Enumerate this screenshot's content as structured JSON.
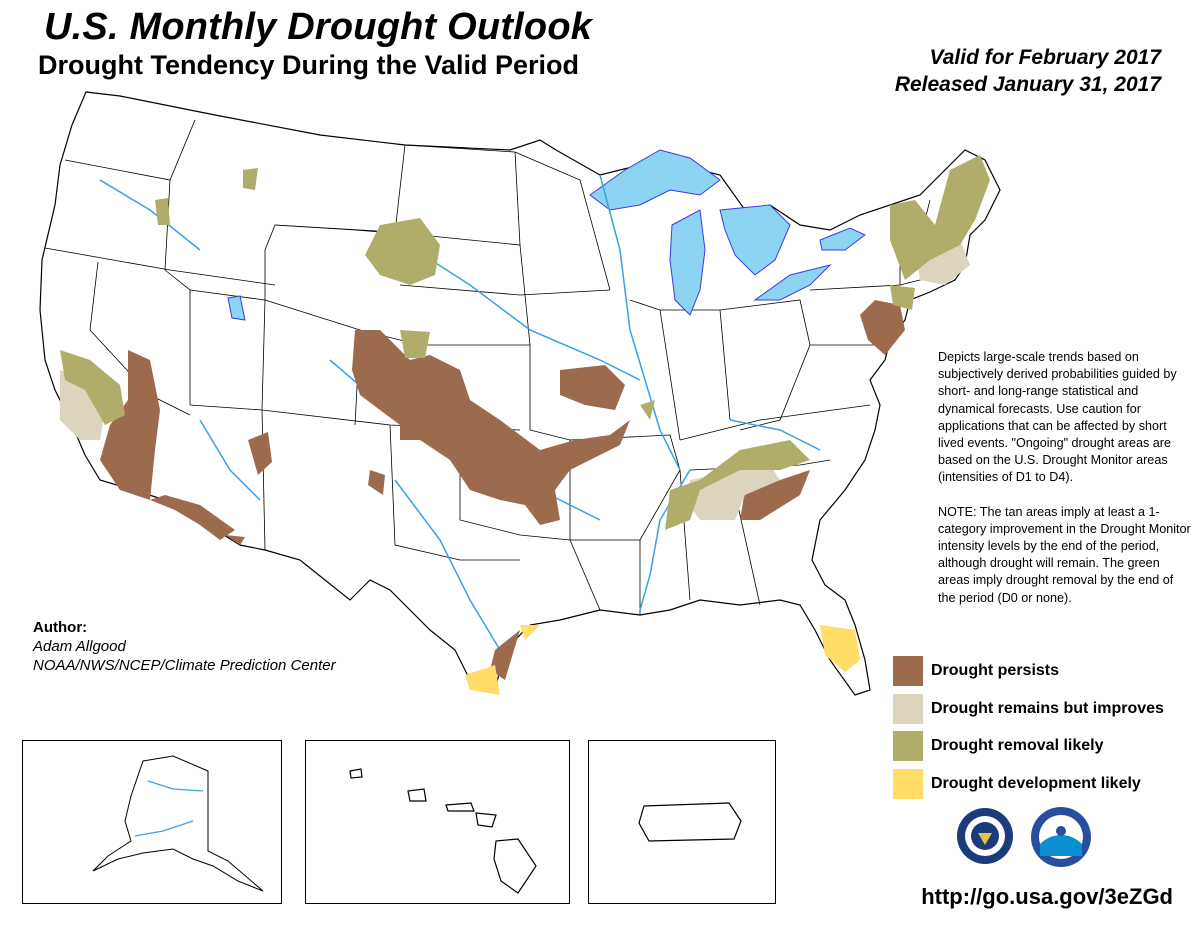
{
  "header": {
    "title": "U.S. Monthly Drought Outlook",
    "subtitle": "Drought Tendency During the Valid Period",
    "valid": "Valid for February 2017",
    "released": "Released January 31, 2017"
  },
  "description": {
    "text": "Depicts large-scale trends based on subjectively derived probabilities guided by short- and long-range statistical and dynamical forecasts. Use caution for applications that can be affected by short lived events. \"Ongoing\" drought areas are based on the U.S. Drought Monitor areas (intensities of D1 to D4).",
    "note": "NOTE: The tan areas imply at least a 1-category improvement in the Drought Monitor intensity levels by the end of the period, although drought will remain. The green areas imply drought removal by the end of the period (D0 or none)."
  },
  "legend": [
    {
      "label": "Drought persists",
      "color": "#9c6a4d"
    },
    {
      "label": "Drought remains but improves",
      "color": "#ddd4bf"
    },
    {
      "label": "Drought removal likely",
      "color": "#b0ad6b"
    },
    {
      "label": "Drought development likely",
      "color": "#ffdd66"
    }
  ],
  "author": {
    "heading": "Author:",
    "name": "Adam Allgood",
    "org": "NOAA/NWS/NCEP/Climate Prediction Center"
  },
  "colors": {
    "water": "#8dd3f2",
    "river": "#3aa0e8",
    "lake_outline": "#3a3ae0"
  },
  "logos": [
    "noaa-nws-seal-icon",
    "noaa-logo-icon"
  ],
  "url": "http://go.usa.gov/3eZGd"
}
